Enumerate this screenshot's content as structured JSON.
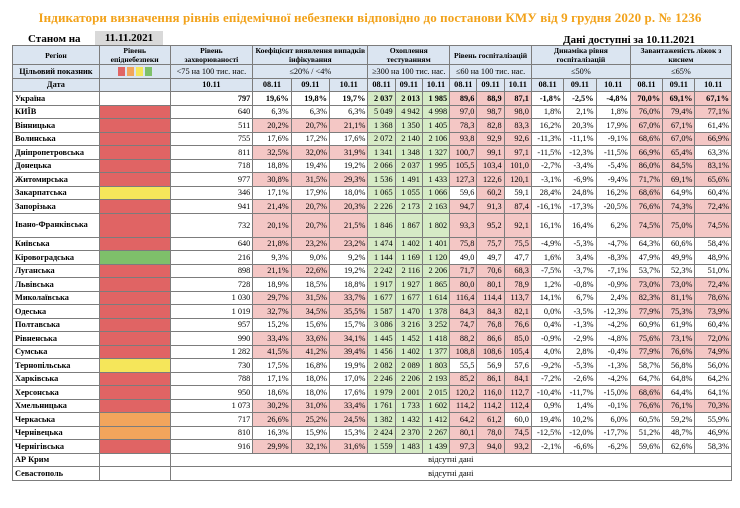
{
  "title": "Індикатори визначення рівнів епідемічної небезпеки відповідно до постанови КМУ від 9 грудня 2020 р. № 1236",
  "as_of_label": "Станом на",
  "as_of_date": "11.11.2021",
  "data_available": "Дані доступні за 10.11.2021",
  "headers": {
    "region": "Регіон",
    "danger_level": "Рівень епіднебезпеки",
    "incidence": "Рівень захворюваності",
    "detection": "Коефіцієнт виявлення випадків інфікування",
    "testing": "Охоплення тестуванням",
    "hosp": "Рівень госпіталізацій",
    "hosp_dyn": "Динаміка рівня госпіталізацій",
    "bed_load": "Завантаженість ліжок з киснем"
  },
  "targets": {
    "label": "Цільовий показник",
    "incidence": "<75 на 100 тис. нас.",
    "detection": "≤20% / <4%",
    "testing": "≥300 на 100 тис. нас.",
    "hosp": "≤60 на 100 тис. нас.",
    "hosp_dyn": "≤50%",
    "bed_load": "≤65%"
  },
  "dates": {
    "label": "Дата",
    "single": "10.11",
    "triple": [
      "08.11",
      "09.11",
      "10.11"
    ]
  },
  "level_colors": {
    "red": "#e06464",
    "orange": "#f2a55c",
    "yellow": "#f5e65a",
    "green": "#7ec06a"
  },
  "no_data_text": "відсутні дані",
  "rows": [
    {
      "name": "Україна",
      "level": "",
      "inc": "797",
      "det": [
        "19,6%",
        "19,8%",
        "19,7%"
      ],
      "test": [
        "2 037",
        "2 013",
        "1 985"
      ],
      "hosp": [
        "89,6",
        "88,9",
        "87,1"
      ],
      "dyn": [
        "-1,8%",
        "-2,5%",
        "-4,8%"
      ],
      "bed": [
        "70,0%",
        "69,1%",
        "67,1%"
      ],
      "bold": true
    },
    {
      "name": "КИЇВ",
      "level": "red",
      "inc": "640",
      "det": [
        "6,3%",
        "6,3%",
        "6,3%"
      ],
      "test": [
        "5 049",
        "4 942",
        "4 998"
      ],
      "hosp": [
        "97,0",
        "98,7",
        "98,0"
      ],
      "dyn": [
        "1,8%",
        "2,1%",
        "1,8%"
      ],
      "bed": [
        "76,0%",
        "79,4%",
        "77,1%"
      ]
    },
    {
      "name": "Вінницька",
      "level": "red",
      "inc": "511",
      "det": [
        "20,2%",
        "20,7%",
        "21,1%"
      ],
      "test": [
        "1 368",
        "1 350",
        "1 405"
      ],
      "hosp": [
        "78,3",
        "82,8",
        "83,3"
      ],
      "dyn": [
        "16,2%",
        "20,3%",
        "17,9%"
      ],
      "bed": [
        "67,0%",
        "67,1%",
        "61,4%"
      ]
    },
    {
      "name": "Волинська",
      "level": "red",
      "inc": "755",
      "det": [
        "17,6%",
        "17,2%",
        "17,6%"
      ],
      "test": [
        "2 072",
        "2 140",
        "2 106"
      ],
      "hosp": [
        "93,8",
        "92,9",
        "92,6"
      ],
      "dyn": [
        "-11,3%",
        "-11,1%",
        "-9,1%"
      ],
      "bed": [
        "68,6%",
        "67,0%",
        "66,9%"
      ]
    },
    {
      "name": "Дніпропетровська",
      "level": "red",
      "inc": "811",
      "det": [
        "32,5%",
        "32,0%",
        "31,9%"
      ],
      "test": [
        "1 341",
        "1 348",
        "1 327"
      ],
      "hosp": [
        "100,7",
        "99,1",
        "97,1"
      ],
      "dyn": [
        "-11,5%",
        "-12,3%",
        "-11,5%"
      ],
      "bed": [
        "66,9%",
        "65,4%",
        "63,3%"
      ]
    },
    {
      "name": "Донецька",
      "level": "red",
      "inc": "718",
      "det": [
        "18,8%",
        "19,4%",
        "19,2%"
      ],
      "test": [
        "2 066",
        "2 037",
        "1 995"
      ],
      "hosp": [
        "105,5",
        "103,4",
        "101,0"
      ],
      "dyn": [
        "-2,7%",
        "-3,4%",
        "-5,4%"
      ],
      "bed": [
        "86,0%",
        "84,5%",
        "83,1%"
      ]
    },
    {
      "name": "Житомирська",
      "level": "red",
      "inc": "977",
      "det": [
        "30,8%",
        "31,5%",
        "29,3%"
      ],
      "test": [
        "1 536",
        "1 491",
        "1 433"
      ],
      "hosp": [
        "127,3",
        "122,6",
        "120,1"
      ],
      "dyn": [
        "-3,1%",
        "-6,9%",
        "-9,4%"
      ],
      "bed": [
        "71,7%",
        "69,1%",
        "65,6%"
      ]
    },
    {
      "name": "Закарпатська",
      "level": "yellow",
      "inc": "346",
      "det": [
        "17,1%",
        "17,9%",
        "18,0%"
      ],
      "test": [
        "1 065",
        "1 055",
        "1 066"
      ],
      "hosp": [
        "59,6",
        "60,2",
        "59,1"
      ],
      "dyn": [
        "28,4%",
        "24,8%",
        "16,2%"
      ],
      "bed": [
        "68,6%",
        "64,9%",
        "60,4%"
      ]
    },
    {
      "name": "Запорізька",
      "level": "red",
      "inc": "941",
      "det": [
        "21,4%",
        "20,7%",
        "20,3%"
      ],
      "test": [
        "2 226",
        "2 173",
        "2 163"
      ],
      "hosp": [
        "94,7",
        "91,3",
        "87,4"
      ],
      "dyn": [
        "-16,1%",
        "-17,3%",
        "-20,5%"
      ],
      "bed": [
        "76,6%",
        "74,3%",
        "72,4%"
      ]
    },
    {
      "name": "Івано-Франківська",
      "level": "red",
      "inc": "732",
      "det": [
        "20,1%",
        "20,7%",
        "21,5%"
      ],
      "test": [
        "1 846",
        "1 867",
        "1 802"
      ],
      "hosp": [
        "93,3",
        "95,2",
        "92,1"
      ],
      "dyn": [
        "16,1%",
        "16,4%",
        "6,2%"
      ],
      "bed": [
        "74,5%",
        "75,0%",
        "74,5%"
      ],
      "tall": true
    },
    {
      "name": "Київська",
      "level": "red",
      "inc": "640",
      "det": [
        "21,8%",
        "23,2%",
        "23,2%"
      ],
      "test": [
        "1 474",
        "1 402",
        "1 401"
      ],
      "hosp": [
        "75,8",
        "75,7",
        "75,5"
      ],
      "dyn": [
        "-4,9%",
        "-5,3%",
        "-4,7%"
      ],
      "bed": [
        "64,3%",
        "60,6%",
        "58,4%"
      ]
    },
    {
      "name": "Кіровоградська",
      "level": "green",
      "inc": "216",
      "det": [
        "9,3%",
        "9,0%",
        "9,2%"
      ],
      "test": [
        "1 144",
        "1 169",
        "1 120"
      ],
      "hosp": [
        "49,0",
        "49,7",
        "47,7"
      ],
      "dyn": [
        "1,6%",
        "3,4%",
        "-8,3%"
      ],
      "bed": [
        "47,9%",
        "49,9%",
        "48,9%"
      ]
    },
    {
      "name": "Луганська",
      "level": "red",
      "inc": "898",
      "det": [
        "21,1%",
        "22,6%",
        "19,2%"
      ],
      "test": [
        "2 242",
        "2 116",
        "2 206"
      ],
      "hosp": [
        "71,7",
        "70,6",
        "68,3"
      ],
      "dyn": [
        "-7,5%",
        "-3,7%",
        "-7,1%"
      ],
      "bed": [
        "53,7%",
        "52,3%",
        "51,0%"
      ]
    },
    {
      "name": "Львівська",
      "level": "red",
      "inc": "728",
      "det": [
        "18,9%",
        "18,5%",
        "18,8%"
      ],
      "test": [
        "1 917",
        "1 927",
        "1 865"
      ],
      "hosp": [
        "80,0",
        "80,1",
        "78,9"
      ],
      "dyn": [
        "1,2%",
        "-0,8%",
        "-0,9%"
      ],
      "bed": [
        "73,0%",
        "73,0%",
        "72,4%"
      ]
    },
    {
      "name": "Миколаївська",
      "level": "red",
      "inc": "1 030",
      "det": [
        "29,7%",
        "31,5%",
        "33,7%"
      ],
      "test": [
        "1 677",
        "1 677",
        "1 614"
      ],
      "hosp": [
        "116,4",
        "114,4",
        "113,7"
      ],
      "dyn": [
        "14,1%",
        "6,7%",
        "2,4%"
      ],
      "bed": [
        "82,3%",
        "81,1%",
        "78,6%"
      ]
    },
    {
      "name": "Одеська",
      "level": "red",
      "inc": "1 019",
      "det": [
        "32,7%",
        "34,5%",
        "35,5%"
      ],
      "test": [
        "1 587",
        "1 470",
        "1 378"
      ],
      "hosp": [
        "84,3",
        "84,3",
        "82,1"
      ],
      "dyn": [
        "0,0%",
        "-3,5%",
        "-12,3%"
      ],
      "bed": [
        "77,9%",
        "75,3%",
        "73,9%"
      ]
    },
    {
      "name": "Полтавська",
      "level": "red",
      "inc": "957",
      "det": [
        "15,2%",
        "15,6%",
        "15,7%"
      ],
      "test": [
        "3 086",
        "3 216",
        "3 252"
      ],
      "hosp": [
        "74,7",
        "76,8",
        "76,6"
      ],
      "dyn": [
        "0,4%",
        "-1,3%",
        "-4,2%"
      ],
      "bed": [
        "60,9%",
        "61,9%",
        "60,4%"
      ]
    },
    {
      "name": "Рівненська",
      "level": "red",
      "inc": "990",
      "det": [
        "33,4%",
        "33,6%",
        "34,1%"
      ],
      "test": [
        "1 445",
        "1 452",
        "1 418"
      ],
      "hosp": [
        "88,2",
        "86,6",
        "85,0"
      ],
      "dyn": [
        "-0,9%",
        "-2,9%",
        "-4,8%"
      ],
      "bed": [
        "75,6%",
        "73,1%",
        "72,0%"
      ]
    },
    {
      "name": "Сумська",
      "level": "red",
      "inc": "1 282",
      "det": [
        "41,5%",
        "41,2%",
        "39,4%"
      ],
      "test": [
        "1 456",
        "1 402",
        "1 377"
      ],
      "hosp": [
        "108,8",
        "108,6",
        "105,4"
      ],
      "dyn": [
        "4,0%",
        "2,8%",
        "-0,4%"
      ],
      "bed": [
        "77,9%",
        "76,6%",
        "74,9%"
      ]
    },
    {
      "name": "Тернопільська",
      "level": "yellow",
      "inc": "730",
      "det": [
        "17,5%",
        "16,8%",
        "19,9%"
      ],
      "test": [
        "2 082",
        "2 089",
        "1 803"
      ],
      "hosp": [
        "55,5",
        "56,9",
        "57,6"
      ],
      "dyn": [
        "-9,2%",
        "-5,3%",
        "-1,3%"
      ],
      "bed": [
        "58,7%",
        "56,8%",
        "56,0%"
      ]
    },
    {
      "name": "Харківська",
      "level": "red",
      "inc": "788",
      "det": [
        "17,1%",
        "18,0%",
        "17,0%"
      ],
      "test": [
        "2 246",
        "2 206",
        "2 193"
      ],
      "hosp": [
        "85,2",
        "86,1",
        "84,1"
      ],
      "dyn": [
        "-7,2%",
        "-2,6%",
        "-4,2%"
      ],
      "bed": [
        "64,7%",
        "64,8%",
        "64,2%"
      ]
    },
    {
      "name": "Херсонська",
      "level": "red",
      "inc": "950",
      "det": [
        "18,6%",
        "18,0%",
        "17,6%"
      ],
      "test": [
        "1 979",
        "2 001",
        "2 015"
      ],
      "hosp": [
        "120,2",
        "116,0",
        "112,7"
      ],
      "dyn": [
        "-10,4%",
        "-11,7%",
        "-15,0%"
      ],
      "bed": [
        "68,6%",
        "64,4%",
        "64,1%"
      ]
    },
    {
      "name": "Хмельницька",
      "level": "red",
      "inc": "1 073",
      "det": [
        "30,2%",
        "31,0%",
        "33,4%"
      ],
      "test": [
        "1 761",
        "1 733",
        "1 602"
      ],
      "hosp": [
        "114,2",
        "114,2",
        "112,4"
      ],
      "dyn": [
        "0,9%",
        "1,4%",
        "-0,1%"
      ],
      "bed": [
        "76,6%",
        "76,1%",
        "70,3%"
      ]
    },
    {
      "name": "Черкаська",
      "level": "orange",
      "inc": "717",
      "det": [
        "26,6%",
        "25,2%",
        "24,5%"
      ],
      "test": [
        "1 382",
        "1 432",
        "1 412"
      ],
      "hosp": [
        "64,2",
        "61,2",
        "60,0"
      ],
      "dyn": [
        "19,4%",
        "10,2%",
        "6,0%"
      ],
      "bed": [
        "60,5%",
        "59,2%",
        "55,9%"
      ]
    },
    {
      "name": "Чернівецька",
      "level": "orange",
      "inc": "810",
      "det": [
        "16,3%",
        "15,9%",
        "15,3%"
      ],
      "test": [
        "2 424",
        "2 370",
        "2 267"
      ],
      "hosp": [
        "80,1",
        "78,0",
        "74,5"
      ],
      "dyn": [
        "-12,5%",
        "-12,0%",
        "-17,7%"
      ],
      "bed": [
        "51,2%",
        "48,7%",
        "46,9%"
      ]
    },
    {
      "name": "Чернігівська",
      "level": "red",
      "inc": "916",
      "det": [
        "29,9%",
        "32,1%",
        "31,6%"
      ],
      "test": [
        "1 559",
        "1 483",
        "1 439"
      ],
      "hosp": [
        "97,3",
        "94,0",
        "93,2"
      ],
      "dyn": [
        "-2,1%",
        "-6,6%",
        "-6,2%"
      ],
      "bed": [
        "59,6%",
        "62,6%",
        "58,3%"
      ]
    }
  ],
  "no_data_rows": [
    "АР Крим",
    "Севастополь"
  ]
}
